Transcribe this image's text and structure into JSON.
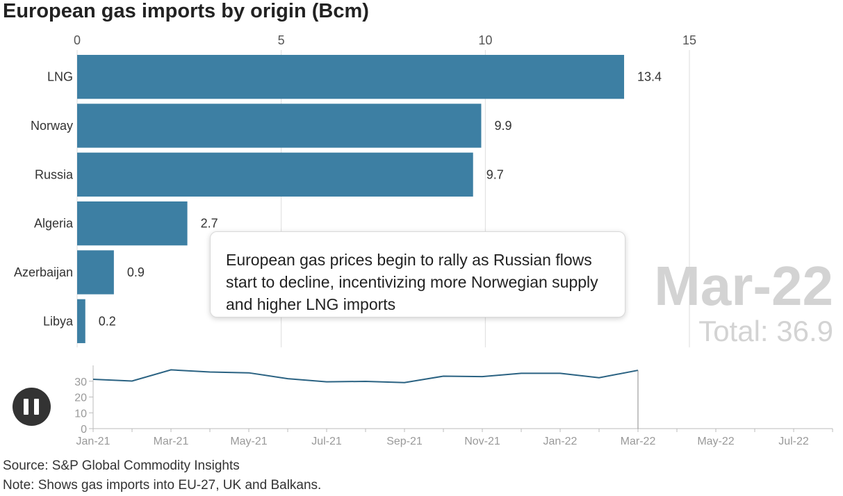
{
  "title": "European gas imports by origin (Bcm)",
  "annotation": "European gas prices begin to rally as Russian flows start to decline, incentivizing more Norwegian supply and higher LNG imports",
  "period_label": "Mar-22",
  "total_prefix": "Total: ",
  "total_value": "36.9",
  "source": "Source: S&P Global Commodity Insights",
  "note": "Note: Shows gas imports into EU-27, UK and Balkans.",
  "colors": {
    "bar": "#3d7fa3",
    "line": "#2a6282",
    "ghost_text": "#d3d3d3",
    "grid": "#dddddd"
  },
  "controls": {
    "pause_icon": "pause-icon"
  },
  "chart_data": [
    {
      "type": "bar",
      "orientation": "horizontal",
      "categories": [
        "LNG",
        "Norway",
        "Russia",
        "Algeria",
        "Azerbaijan",
        "Libya"
      ],
      "values": [
        13.4,
        9.9,
        9.7,
        2.7,
        0.9,
        0.2
      ],
      "value_labels": [
        "13.4",
        "9.9",
        "9.7",
        "2.7",
        "0.9",
        "0.2"
      ],
      "xlim": [
        0,
        15
      ],
      "x_ticks": [
        0,
        5,
        10,
        15
      ],
      "x_tick_labels": [
        "0",
        "5",
        "10",
        "15"
      ],
      "grid": true,
      "axis_position": "top"
    },
    {
      "type": "line",
      "x": [
        "Jan-21",
        "Feb-21",
        "Mar-21",
        "Apr-21",
        "May-21",
        "Jun-21",
        "Jul-21",
        "Aug-21",
        "Sep-21",
        "Oct-21",
        "Nov-21",
        "Dec-21",
        "Jan-22",
        "Feb-22",
        "Mar-22"
      ],
      "values": [
        31.2,
        30.1,
        37.2,
        35.8,
        35.3,
        31.6,
        29.6,
        29.9,
        29.1,
        33.2,
        32.9,
        35.0,
        35.0,
        32.2,
        36.9
      ],
      "x_range": [
        "Jan-21",
        "Aug-22"
      ],
      "x_tick_labels": [
        "Jan-21",
        "Mar-21",
        "May-21",
        "Jul-21",
        "Sep-21",
        "Nov-21",
        "Jan-22",
        "Mar-22",
        "May-22",
        "Jul-22"
      ],
      "ylim": [
        0,
        40
      ],
      "y_ticks": [
        0,
        10,
        20,
        30
      ],
      "y_tick_labels": [
        "0",
        "10",
        "20",
        "30"
      ],
      "current_marker": "Mar-22"
    }
  ]
}
